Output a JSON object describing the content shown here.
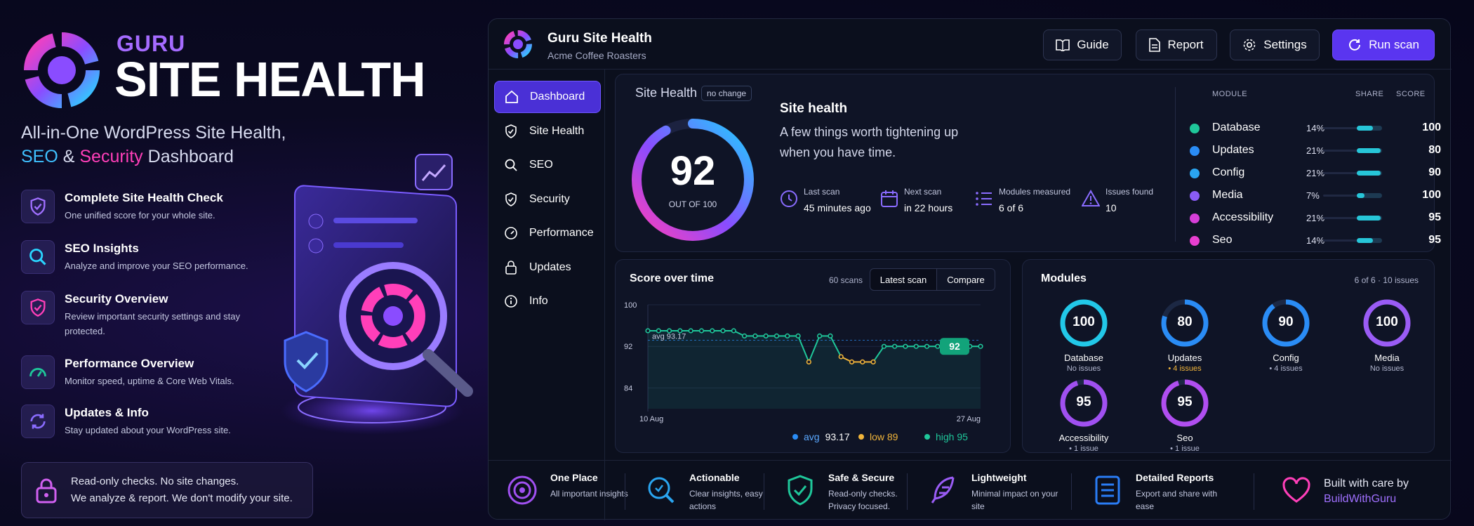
{
  "promo": {
    "brand_top": "GURU",
    "brand_main": "SITE HEALTH",
    "tagline_line1": "All-in-One WordPress Site Health,",
    "tagline_seo": "SEO",
    "tagline_amp": " & ",
    "tagline_security": "Security",
    "tagline_dashboard": " Dashboard",
    "features": [
      {
        "icon": "shield-check-icon",
        "title": "Complete Site Health Check",
        "desc": "One unified score for your whole site."
      },
      {
        "icon": "search-icon",
        "title": "SEO Insights",
        "desc": "Analyze and improve your SEO performance."
      },
      {
        "icon": "shield-icon",
        "title": "Security Overview",
        "desc": "Review important security settings and stay protected."
      },
      {
        "icon": "gauge-icon",
        "title": "Performance Overview",
        "desc": "Monitor speed, uptime & Core Web Vitals."
      },
      {
        "icon": "refresh-icon",
        "title": "Updates & Info",
        "desc": "Stay updated about your WordPress site."
      }
    ],
    "readonly_line1": "Read-only checks. No site changes.",
    "readonly_line2": "We analyze & report. We don't modify your site."
  },
  "header": {
    "title": "Guru Site Health",
    "subtitle": "Acme Coffee Roasters",
    "guide_label": "Guide",
    "report_label": "Report",
    "settings_label": "Settings",
    "run_label": "Run scan"
  },
  "sidebar": {
    "items": [
      {
        "label": "Dashboard",
        "icon": "home-icon",
        "active": true
      },
      {
        "label": "Site Health",
        "icon": "shield-icon"
      },
      {
        "label": "SEO",
        "icon": "search-icon"
      },
      {
        "label": "Security",
        "icon": "shield-icon"
      },
      {
        "label": "Performance",
        "icon": "gauge-icon"
      },
      {
        "label": "Updates",
        "icon": "lock-icon"
      },
      {
        "label": "Info",
        "icon": "info-icon"
      }
    ]
  },
  "health": {
    "label": "Site Health",
    "change_badge": "no change",
    "score": "92",
    "score_value": 92,
    "out_of": "OUT OF 100",
    "title": "Site health",
    "description": "A few things worth tightening up when you have time.",
    "stats": [
      {
        "label": "Last scan",
        "value": "45 minutes ago",
        "icon": "clock-icon"
      },
      {
        "label": "Next scan",
        "value": "in 22 hours",
        "icon": "calendar-icon"
      },
      {
        "label": "Modules measured",
        "value": "6 of 6",
        "icon": "list-icon"
      },
      {
        "label": "Issues found",
        "value": "10",
        "icon": "warning-icon"
      }
    ]
  },
  "module_table": {
    "headers": {
      "module": "MODULE",
      "share": "SHARE",
      "score": "SCORE"
    },
    "rows": [
      {
        "name": "Database",
        "share": "14%",
        "share_value": 14,
        "score": "100",
        "color": "#1fc79a"
      },
      {
        "name": "Updates",
        "share": "21%",
        "share_value": 21,
        "score": "80",
        "color": "#2a8cf5"
      },
      {
        "name": "Config",
        "share": "21%",
        "share_value": 21,
        "score": "90",
        "color": "#2aa5f0"
      },
      {
        "name": "Media",
        "share": "7%",
        "share_value": 7,
        "score": "100",
        "color": "#8a5cf5"
      },
      {
        "name": "Accessibility",
        "share": "21%",
        "share_value": 21,
        "score": "95",
        "color": "#d63fd8"
      },
      {
        "name": "Seo",
        "share": "14%",
        "share_value": 14,
        "score": "95",
        "color": "#e83fd0"
      }
    ]
  },
  "score_chart": {
    "title": "Score over time",
    "scans": "60 scans",
    "tab_latest": "Latest scan",
    "tab_compare": "Compare",
    "avg_label": "avg 93.17",
    "last_value_label": "92",
    "legend_avg_label": "avg",
    "legend_avg_value": "93.17",
    "legend_low": "low 89",
    "legend_high": "high 95"
  },
  "chart_data": {
    "type": "line",
    "x_start": "10 Aug",
    "x_end": "27 Aug",
    "y_ticks": [
      100,
      92,
      84
    ],
    "ylim": [
      80,
      100
    ],
    "avg": 93.17,
    "low": 89,
    "high": 95,
    "values": [
      95,
      95,
      95,
      95,
      95,
      95,
      95,
      95,
      95,
      94,
      94,
      94,
      94,
      94,
      94,
      89,
      94,
      94,
      90,
      89,
      89,
      89,
      92,
      92,
      92,
      92,
      92,
      92,
      92,
      92,
      92,
      92
    ],
    "colors": {
      "line": "#1fc79a",
      "low": "#f0b43a",
      "avg": "#2a8cf5"
    }
  },
  "modules": {
    "title": "Modules",
    "count": "6 of 6 · 10 issues",
    "items": [
      {
        "name": "Database",
        "score": "100",
        "score_value": 100,
        "issues": "No issues",
        "color": "#22c8e8",
        "warn": false
      },
      {
        "name": "Updates",
        "score": "80",
        "score_value": 80,
        "issues": "• 4 issues",
        "color": "#2a8cf5",
        "warn": true
      },
      {
        "name": "Config",
        "score": "90",
        "score_value": 90,
        "issues": "• 4 issues",
        "color": "#2a8cf5",
        "warn": false
      },
      {
        "name": "Media",
        "score": "100",
        "score_value": 100,
        "issues": "No issues",
        "color": "#9a5cf5",
        "warn": false
      },
      {
        "name": "Accessibility",
        "score": "95",
        "score_value": 95,
        "issues": "• 1 issue",
        "color": "#a050f0",
        "warn": false
      },
      {
        "name": "Seo",
        "score": "95",
        "score_value": 95,
        "issues": "• 1 issue",
        "color": "#b04ef0",
        "warn": false
      }
    ]
  },
  "footer": {
    "items": [
      {
        "title": "One Place",
        "desc": "All important insights",
        "icon": "target-icon"
      },
      {
        "title": "Actionable",
        "desc": "Clear insights, easy actions",
        "icon": "search-icon"
      },
      {
        "title": "Safe & Secure",
        "desc": "Read-only checks. Privacy focused.",
        "icon": "shield-check-icon"
      },
      {
        "title": "Lightweight",
        "desc": "Minimal impact on your site",
        "icon": "feather-icon"
      },
      {
        "title": "Detailed Reports",
        "desc": "Export and share with ease",
        "icon": "document-icon"
      }
    ],
    "built_line1": "Built with care by",
    "built_line2": "BuildWithGuru"
  }
}
